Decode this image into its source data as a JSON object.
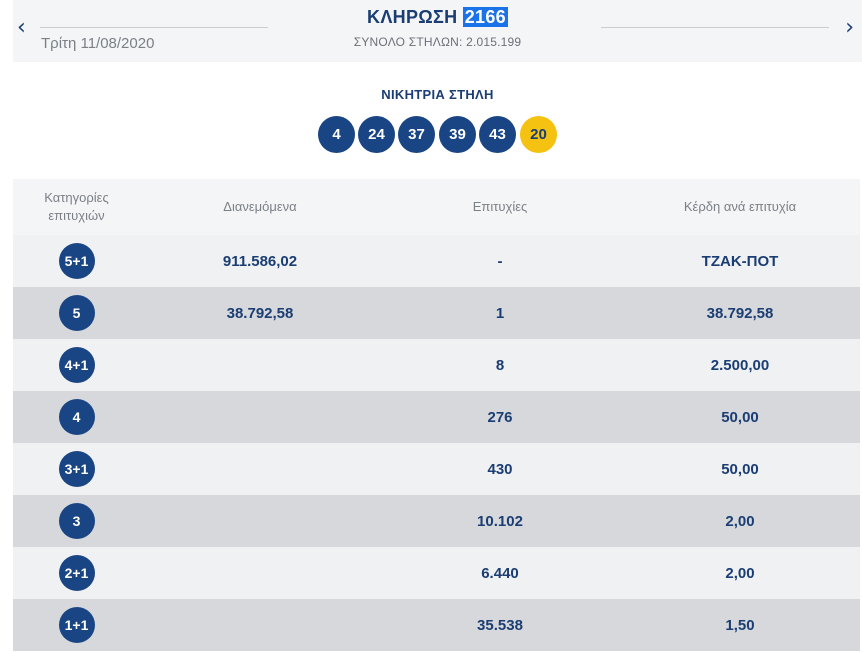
{
  "header": {
    "prev_icon": "chevron-left-icon",
    "next_icon": "chevron-right-icon",
    "title_prefix": "ΚΛΗΡΩΣΗ",
    "draw_number": "2166",
    "total_columns": "ΣΥΝΟΛΟ ΣΤΗΛΩΝ: 2.015.199",
    "date": "Τρίτη 11/08/2020"
  },
  "winning": {
    "title": "ΝΙΚΗΤΡΙΑ ΣΤΗΛΗ",
    "numbers": [
      "4",
      "24",
      "37",
      "39",
      "43"
    ],
    "joker": "20",
    "joker_color": "#f5c211",
    "ball_color": "#1a4584"
  },
  "table": {
    "headers": {
      "category": "Κατηγορίες επιτυχιών",
      "distributed": "Διανεμόμενα",
      "winners": "Επιτυχίες",
      "prize": "Κέρδη ανά επιτυχία"
    },
    "rows": [
      {
        "category": "5+1",
        "distributed": "911.586,02",
        "winners": "-",
        "prize": "ΤΖΑΚ-ΠΟΤ"
      },
      {
        "category": "5",
        "distributed": "38.792,58",
        "winners": "1",
        "prize": "38.792,58"
      },
      {
        "category": "4+1",
        "distributed": "",
        "winners": "8",
        "prize": "2.500,00"
      },
      {
        "category": "4",
        "distributed": "",
        "winners": "276",
        "prize": "50,00"
      },
      {
        "category": "3+1",
        "distributed": "",
        "winners": "430",
        "prize": "50,00"
      },
      {
        "category": "3",
        "distributed": "",
        "winners": "10.102",
        "prize": "2,00"
      },
      {
        "category": "2+1",
        "distributed": "",
        "winners": "6.440",
        "prize": "2,00"
      },
      {
        "category": "1+1",
        "distributed": "",
        "winners": "35.538",
        "prize": "1,50"
      }
    ]
  }
}
